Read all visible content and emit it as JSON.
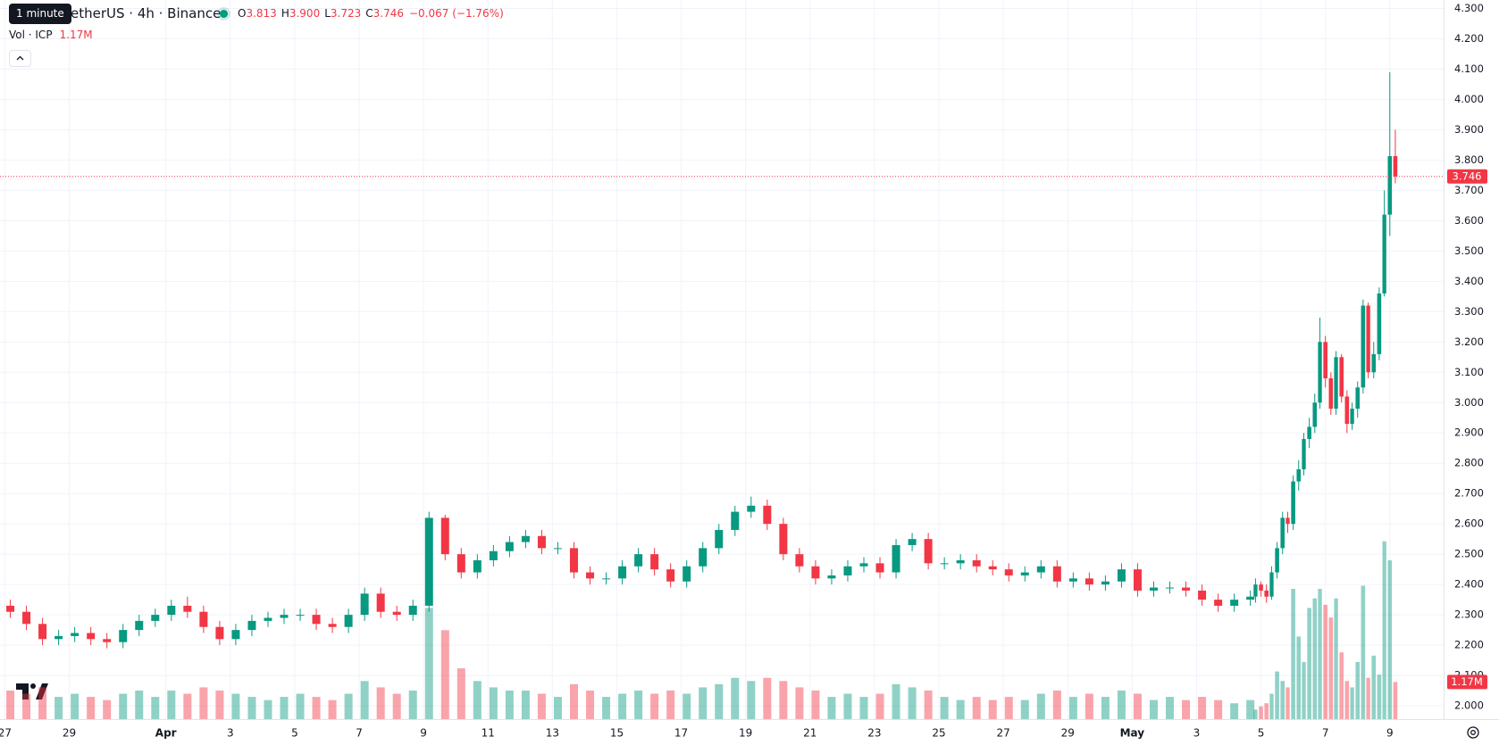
{
  "chart_data": {
    "type": "candlestick",
    "title": "etherUS · 4h · Binance",
    "tooltip": "1 minute",
    "legend": {
      "o_label": "O",
      "o": "3.813",
      "h_label": "H",
      "h": "3.900",
      "l_label": "L",
      "l": "3.723",
      "c_label": "C",
      "c": "3.746",
      "change": "−0.067 (−1.76%)"
    },
    "volume_label": "Vol · ICP",
    "volume_value": "1.17M",
    "up_color": "#089981",
    "down_color": "#f23645",
    "grid": true,
    "last_price_line": true,
    "xlim": [
      -0.15,
      44.67
    ],
    "ylim": [
      1.956,
      4.328
    ],
    "xticks": [
      {
        "value": 0,
        "label": "27"
      },
      {
        "value": 2,
        "label": "29"
      },
      {
        "value": 5,
        "label": "Apr"
      },
      {
        "value": 7,
        "label": "3"
      },
      {
        "value": 9,
        "label": "5"
      },
      {
        "value": 11,
        "label": "7"
      },
      {
        "value": 13,
        "label": "9"
      },
      {
        "value": 15,
        "label": "11"
      },
      {
        "value": 17,
        "label": "13"
      },
      {
        "value": 19,
        "label": "15"
      },
      {
        "value": 21,
        "label": "17"
      },
      {
        "value": 23,
        "label": "19"
      },
      {
        "value": 25,
        "label": "21"
      },
      {
        "value": 27,
        "label": "23"
      },
      {
        "value": 29,
        "label": "25"
      },
      {
        "value": 31,
        "label": "27"
      },
      {
        "value": 33,
        "label": "29"
      },
      {
        "value": 35,
        "label": "May"
      },
      {
        "value": 37,
        "label": "3"
      },
      {
        "value": 39,
        "label": "5"
      },
      {
        "value": 41,
        "label": "7"
      },
      {
        "value": 43,
        "label": "9"
      }
    ],
    "yticks": [
      {
        "value": 2.0,
        "label": "2.000"
      },
      {
        "value": 2.1,
        "label": "2.100"
      },
      {
        "value": 2.2,
        "label": "2.200"
      },
      {
        "value": 2.3,
        "label": "2.300"
      },
      {
        "value": 2.4,
        "label": "2.400"
      },
      {
        "value": 2.5,
        "label": "2.500"
      },
      {
        "value": 2.6,
        "label": "2.600"
      },
      {
        "value": 2.7,
        "label": "2.700"
      },
      {
        "value": 2.8,
        "label": "2.800"
      },
      {
        "value": 2.9,
        "label": "2.900"
      },
      {
        "value": 3.0,
        "label": "3.000"
      },
      {
        "value": 3.1,
        "label": "3.100"
      },
      {
        "value": 3.2,
        "label": "3.200"
      },
      {
        "value": 3.3,
        "label": "3.300"
      },
      {
        "value": 3.4,
        "label": "3.400"
      },
      {
        "value": 3.5,
        "label": "3.500"
      },
      {
        "value": 3.6,
        "label": "3.600"
      },
      {
        "value": 3.7,
        "label": "3.700"
      },
      {
        "value": 3.8,
        "label": "3.800"
      },
      {
        "value": 3.9,
        "label": "3.900"
      },
      {
        "value": 4.0,
        "label": "4.000"
      },
      {
        "value": 4.1,
        "label": "4.100"
      },
      {
        "value": 4.2,
        "label": "4.200"
      },
      {
        "value": 4.3,
        "label": "4.300"
      }
    ],
    "x": [
      0.17,
      0.67,
      1.17,
      1.67,
      2.17,
      2.67,
      3.17,
      3.67,
      4.17,
      4.67,
      5.17,
      5.67,
      6.17,
      6.67,
      7.17,
      7.67,
      8.17,
      8.67,
      9.17,
      9.67,
      10.17,
      10.67,
      11.17,
      11.67,
      12.17,
      12.67,
      13.17,
      13.67,
      14.17,
      14.67,
      15.17,
      15.67,
      16.17,
      16.67,
      17.17,
      17.67,
      18.17,
      18.67,
      19.17,
      19.67,
      20.17,
      20.67,
      21.17,
      21.67,
      22.17,
      22.67,
      23.17,
      23.67,
      24.17,
      24.67,
      25.17,
      25.67,
      26.17,
      26.67,
      27.17,
      27.67,
      28.17,
      28.67,
      29.17,
      29.67,
      30.17,
      30.67,
      31.17,
      31.67,
      32.17,
      32.67,
      33.17,
      33.67,
      34.17,
      34.67,
      35.17,
      35.67,
      36.17,
      36.67,
      37.17,
      37.67,
      38.17,
      38.67,
      38.83,
      39,
      39.17,
      39.33,
      39.5,
      39.67,
      39.83,
      40,
      40.17,
      40.33,
      40.5,
      40.67,
      40.83,
      41,
      41.17,
      41.33,
      41.5,
      41.67,
      41.83,
      42,
      42.17,
      42.33,
      42.5,
      42.67,
      42.83,
      43,
      43.17
    ],
    "open": [
      2.33,
      2.31,
      2.27,
      2.22,
      2.23,
      2.24,
      2.22,
      2.21,
      2.25,
      2.28,
      2.3,
      2.33,
      2.31,
      2.26,
      2.22,
      2.25,
      2.28,
      2.29,
      2.3,
      2.3,
      2.27,
      2.26,
      2.3,
      2.37,
      2.31,
      2.3,
      2.33,
      2.62,
      2.5,
      2.44,
      2.48,
      2.51,
      2.54,
      2.56,
      2.52,
      2.52,
      2.44,
      2.42,
      2.42,
      2.46,
      2.5,
      2.45,
      2.41,
      2.46,
      2.52,
      2.58,
      2.64,
      2.66,
      2.6,
      2.5,
      2.46,
      2.42,
      2.43,
      2.46,
      2.47,
      2.44,
      2.53,
      2.55,
      2.47,
      2.47,
      2.48,
      2.46,
      2.45,
      2.43,
      2.44,
      2.46,
      2.41,
      2.42,
      2.4,
      2.41,
      2.45,
      2.38,
      2.39,
      2.39,
      2.38,
      2.35,
      2.33,
      2.35,
      2.36,
      2.4,
      2.38,
      2.36,
      2.44,
      2.52,
      2.62,
      2.6,
      2.74,
      2.78,
      2.88,
      2.92,
      3.0,
      3.2,
      3.08,
      2.98,
      3.15,
      3.02,
      2.93,
      2.98,
      3.05,
      3.32,
      3.1,
      3.16,
      3.36,
      3.62,
      3.813
    ],
    "high": [
      2.35,
      2.33,
      2.29,
      2.25,
      2.26,
      2.26,
      2.24,
      2.27,
      2.3,
      2.32,
      2.35,
      2.36,
      2.33,
      2.28,
      2.27,
      2.3,
      2.31,
      2.32,
      2.32,
      2.32,
      2.29,
      2.32,
      2.39,
      2.39,
      2.33,
      2.35,
      2.64,
      2.63,
      2.52,
      2.5,
      2.53,
      2.56,
      2.58,
      2.58,
      2.54,
      2.54,
      2.46,
      2.44,
      2.48,
      2.52,
      2.52,
      2.47,
      2.48,
      2.54,
      2.6,
      2.66,
      2.69,
      2.68,
      2.62,
      2.52,
      2.48,
      2.45,
      2.48,
      2.49,
      2.49,
      2.55,
      2.57,
      2.57,
      2.49,
      2.5,
      2.5,
      2.48,
      2.47,
      2.46,
      2.48,
      2.48,
      2.44,
      2.44,
      2.43,
      2.47,
      2.47,
      2.41,
      2.41,
      2.41,
      2.4,
      2.37,
      2.37,
      2.38,
      2.42,
      2.41,
      2.4,
      2.46,
      2.54,
      2.64,
      2.64,
      2.76,
      2.81,
      2.9,
      2.95,
      3.03,
      3.28,
      3.22,
      3.1,
      3.17,
      3.16,
      3.04,
      3.0,
      3.07,
      3.34,
      3.33,
      3.2,
      3.38,
      3.7,
      4.09,
      3.9
    ],
    "low": [
      2.29,
      2.25,
      2.2,
      2.2,
      2.21,
      2.2,
      2.19,
      2.19,
      2.23,
      2.26,
      2.28,
      2.29,
      2.24,
      2.2,
      2.2,
      2.23,
      2.26,
      2.27,
      2.28,
      2.25,
      2.24,
      2.24,
      2.28,
      2.29,
      2.28,
      2.28,
      2.31,
      2.48,
      2.42,
      2.42,
      2.46,
      2.49,
      2.52,
      2.5,
      2.5,
      2.42,
      2.4,
      2.4,
      2.4,
      2.44,
      2.43,
      2.39,
      2.39,
      2.44,
      2.5,
      2.56,
      2.62,
      2.58,
      2.48,
      2.44,
      2.4,
      2.4,
      2.41,
      2.44,
      2.42,
      2.42,
      2.51,
      2.45,
      2.45,
      2.45,
      2.44,
      2.43,
      2.41,
      2.41,
      2.42,
      2.39,
      2.39,
      2.38,
      2.38,
      2.39,
      2.36,
      2.36,
      2.37,
      2.36,
      2.33,
      2.31,
      2.31,
      2.33,
      2.34,
      2.36,
      2.34,
      2.35,
      2.42,
      2.5,
      2.57,
      2.58,
      2.71,
      2.76,
      2.85,
      2.9,
      2.98,
      3.05,
      2.96,
      2.96,
      3.0,
      2.9,
      2.91,
      2.95,
      3.03,
      3.08,
      3.08,
      3.14,
      3.35,
      3.55,
      3.723
    ],
    "close": [
      2.31,
      2.27,
      2.22,
      2.23,
      2.24,
      2.22,
      2.21,
      2.25,
      2.28,
      2.3,
      2.33,
      2.31,
      2.26,
      2.22,
      2.25,
      2.28,
      2.29,
      2.3,
      2.3,
      2.27,
      2.26,
      2.3,
      2.37,
      2.31,
      2.3,
      2.33,
      2.62,
      2.5,
      2.44,
      2.48,
      2.51,
      2.54,
      2.56,
      2.52,
      2.52,
      2.44,
      2.42,
      2.42,
      2.46,
      2.5,
      2.45,
      2.41,
      2.46,
      2.52,
      2.58,
      2.64,
      2.66,
      2.6,
      2.5,
      2.46,
      2.42,
      2.43,
      2.46,
      2.47,
      2.44,
      2.53,
      2.55,
      2.47,
      2.47,
      2.48,
      2.46,
      2.45,
      2.43,
      2.44,
      2.46,
      2.41,
      2.42,
      2.4,
      2.41,
      2.45,
      2.38,
      2.39,
      2.39,
      2.38,
      2.35,
      2.33,
      2.35,
      2.36,
      2.4,
      2.38,
      2.36,
      2.44,
      2.52,
      2.62,
      2.6,
      2.74,
      2.78,
      2.88,
      2.92,
      3.0,
      3.2,
      3.08,
      2.98,
      3.15,
      3.02,
      2.93,
      2.98,
      3.05,
      3.32,
      3.1,
      3.16,
      3.36,
      3.62,
      3.813,
      3.746
    ],
    "volume": [
      0.9,
      0.8,
      1.0,
      0.7,
      0.8,
      0.7,
      0.6,
      0.8,
      0.9,
      0.7,
      0.9,
      0.8,
      1.0,
      0.9,
      0.8,
      0.7,
      0.6,
      0.7,
      0.8,
      0.7,
      0.6,
      0.8,
      1.2,
      1.0,
      0.8,
      0.9,
      3.5,
      2.8,
      1.6,
      1.2,
      1.0,
      0.9,
      0.9,
      0.8,
      0.7,
      1.1,
      0.9,
      0.7,
      0.8,
      0.9,
      0.8,
      0.9,
      0.8,
      1.0,
      1.1,
      1.3,
      1.2,
      1.3,
      1.2,
      1.0,
      0.9,
      0.7,
      0.8,
      0.7,
      0.8,
      1.1,
      1.0,
      0.9,
      0.7,
      0.6,
      0.7,
      0.6,
      0.7,
      0.6,
      0.8,
      0.9,
      0.7,
      0.8,
      0.7,
      0.9,
      0.8,
      0.6,
      0.7,
      0.6,
      0.7,
      0.6,
      0.5,
      0.6,
      0.3,
      0.4,
      0.5,
      0.8,
      1.5,
      1.2,
      1.0,
      4.1,
      2.6,
      1.8,
      3.5,
      3.8,
      4.1,
      3.6,
      3.2,
      3.8,
      2.1,
      1.2,
      1.0,
      1.8,
      4.2,
      1.3,
      2.0,
      1.4,
      5.6,
      5.0,
      1.17
    ]
  }
}
